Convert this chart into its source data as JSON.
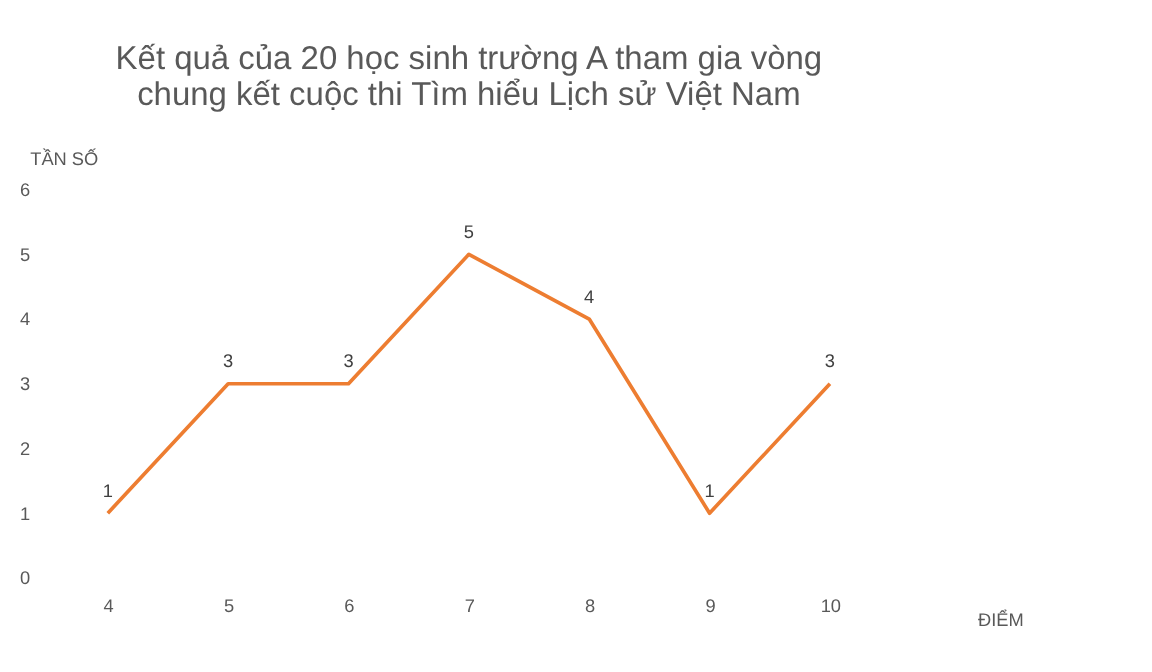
{
  "chart_data": {
    "type": "line",
    "title": [
      "Kết quả của 20 học sinh trường A tham gia vòng",
      "chung kết cuộc thi Tìm hiểu Lịch sử Việt Nam"
    ],
    "xlabel": "ĐIỂM",
    "ylabel": "TẦN SỐ",
    "categories": [
      "4",
      "5",
      "6",
      "7",
      "8",
      "9",
      "10"
    ],
    "series": [
      {
        "color": "#ed7d31",
        "values": [
          1,
          3,
          3,
          5,
          4,
          1,
          3
        ]
      }
    ],
    "ylim": [
      0,
      6
    ],
    "yticks": [
      0,
      1,
      2,
      3,
      4,
      5,
      6
    ],
    "grid": false,
    "legend": false,
    "data_labels": true,
    "marker": "none",
    "line_style": "solid"
  }
}
